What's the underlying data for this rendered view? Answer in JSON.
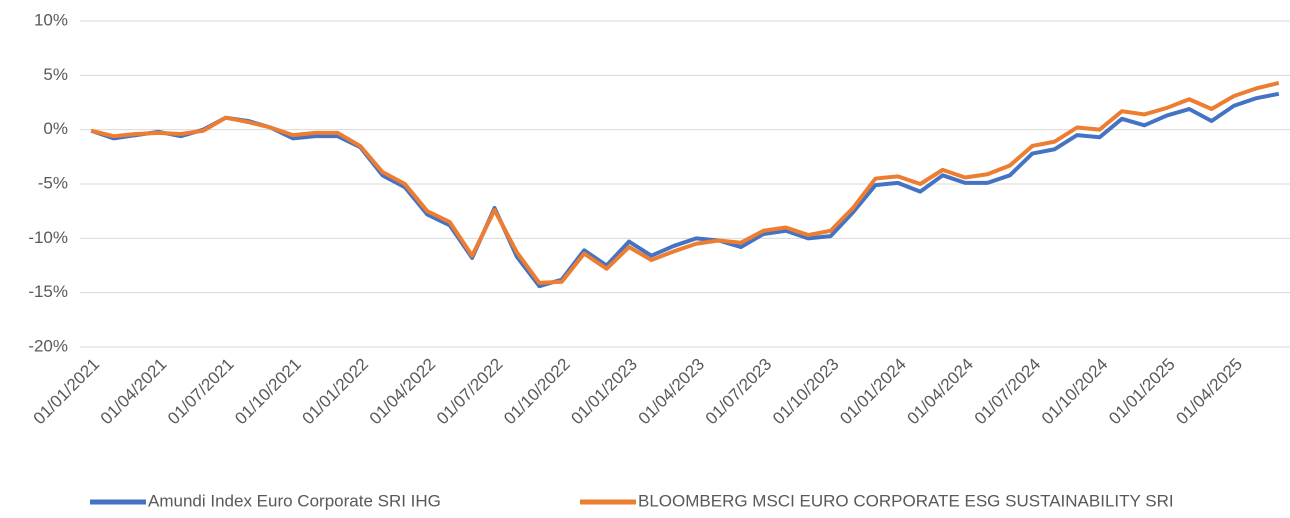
{
  "chart_data": {
    "type": "line",
    "categories": [
      "01/01/2021",
      null,
      null,
      "01/04/2021",
      null,
      null,
      "01/07/2021",
      null,
      null,
      "01/10/2021",
      null,
      null,
      "01/01/2022",
      null,
      null,
      "01/04/2022",
      null,
      null,
      "01/07/2022",
      null,
      null,
      "01/10/2022",
      null,
      null,
      "01/01/2023",
      null,
      null,
      "01/04/2023",
      null,
      null,
      "01/07/2023",
      null,
      null,
      "01/10/2023",
      null,
      null,
      "01/01/2024",
      null,
      null,
      "01/04/2024",
      null,
      null,
      "01/07/2024",
      null,
      null,
      "01/10/2024",
      null,
      null,
      "01/01/2025",
      null,
      null,
      "01/04/2025",
      null,
      null
    ],
    "series": [
      {
        "name": "Amundi Index Euro Corporate SRI IHG",
        "color": "#4472c4",
        "values": [
          -0.1,
          -0.8,
          -0.5,
          -0.2,
          -0.6,
          0,
          1.1,
          0.8,
          0.2,
          -0.8,
          -0.6,
          -0.6,
          -1.6,
          -4.2,
          -5.3,
          -7.8,
          -8.8,
          -11.8,
          -7.2,
          -11.7,
          -14.4,
          -13.8,
          -11.1,
          -12.5,
          -10.3,
          -11.6,
          -10.7,
          -10.0,
          -10.2,
          -10.8,
          -9.6,
          -9.3,
          -10.0,
          -9.8,
          -7.6,
          -5.1,
          -4.9,
          -5.7,
          -4.2,
          -4.9,
          -4.9,
          -4.2,
          -2.2,
          -1.8,
          -0.5,
          -0.7,
          1.0,
          0.4,
          1.3,
          1.9,
          0.8,
          2.2,
          2.9,
          3.3
        ]
      },
      {
        "name": "BLOOMBERG MSCI EURO CORPORATE ESG SUSTAINABILITY SRI",
        "color": "#ed7d31",
        "values": [
          -0.1,
          -0.6,
          -0.4,
          -0.3,
          -0.4,
          -0.1,
          1.1,
          0.7,
          0.2,
          -0.5,
          -0.3,
          -0.3,
          -1.5,
          -3.9,
          -5.0,
          -7.5,
          -8.5,
          -11.6,
          -7.4,
          -11.3,
          -14.1,
          -14.0,
          -11.4,
          -12.8,
          -10.8,
          -12.0,
          -11.2,
          -10.5,
          -10.2,
          -10.4,
          -9.3,
          -9.0,
          -9.7,
          -9.3,
          -7.2,
          -4.5,
          -4.3,
          -5.0,
          -3.7,
          -4.4,
          -4.1,
          -3.3,
          -1.5,
          -1.1,
          0.2,
          0.0,
          1.7,
          1.4,
          2.0,
          2.8,
          1.9,
          3.1,
          3.8,
          4.3
        ]
      }
    ],
    "ylim": [
      -20,
      10
    ],
    "yticks": [
      {
        "value": -20,
        "label": "-20%"
      },
      {
        "value": -15,
        "label": "-15%"
      },
      {
        "value": -10,
        "label": "-10%"
      },
      {
        "value": -5,
        "label": "-5%"
      },
      {
        "value": 0,
        "label": "0%"
      },
      {
        "value": 5,
        "label": "5%"
      },
      {
        "value": 10,
        "label": "10%"
      }
    ],
    "grid": true,
    "legend": "bottom"
  }
}
